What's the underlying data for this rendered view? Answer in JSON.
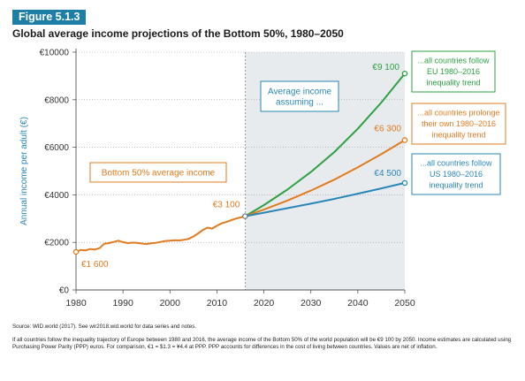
{
  "figure": {
    "label": "Figure 5.1.3",
    "title": "Global average income projections of the Bottom 50%, 1980–2050"
  },
  "chart_data": {
    "type": "line",
    "title": "Global average income projections of the Bottom 50%, 1980–2050",
    "ylabel": "Annual income per adult (€)",
    "xlabel": "",
    "xlim": [
      1980,
      2050
    ],
    "ylim": [
      0,
      10000
    ],
    "x_ticks": [
      "1980",
      "1990",
      "2000",
      "2010",
      "2020",
      "2030",
      "2040",
      "2050"
    ],
    "y_ticks": [
      "€0",
      "€2000",
      "€4000",
      "€6000",
      "€8000",
      "€10000"
    ],
    "grid": "dotted horizontal",
    "projection_start": 2016,
    "colors": {
      "historical": "#e07b20",
      "eu": "#2ea043",
      "own": "#e07b20",
      "us": "#2a86b8",
      "projection_shade": "#e8ebee"
    },
    "series": [
      {
        "key": "historical",
        "x": [
          1980,
          1981,
          1982,
          1983,
          1984,
          1985,
          1986,
          1987,
          1988,
          1989,
          1990,
          1991,
          1992,
          1993,
          1994,
          1995,
          1996,
          1997,
          1998,
          1999,
          2000,
          2001,
          2002,
          2003,
          2004,
          2005,
          2006,
          2007,
          2008,
          2009,
          2010,
          2011,
          2012,
          2013,
          2014,
          2015,
          2016
        ],
        "y": [
          1600,
          1680,
          1660,
          1720,
          1700,
          1760,
          1940,
          1970,
          2020,
          2070,
          2010,
          1970,
          1990,
          1980,
          1950,
          1930,
          1960,
          1980,
          2020,
          2060,
          2070,
          2090,
          2080,
          2110,
          2150,
          2250,
          2380,
          2520,
          2620,
          2580,
          2700,
          2800,
          2860,
          2930,
          3000,
          3050,
          3100
        ]
      },
      {
        "key": "eu",
        "x": [
          2016,
          2020,
          2025,
          2030,
          2035,
          2040,
          2045,
          2050
        ],
        "y": [
          3100,
          3570,
          4220,
          4960,
          5800,
          6780,
          7880,
          9100
        ]
      },
      {
        "key": "own",
        "x": [
          2016,
          2020,
          2025,
          2030,
          2035,
          2040,
          2045,
          2050
        ],
        "y": [
          3100,
          3380,
          3760,
          4180,
          4640,
          5160,
          5710,
          6300
        ]
      },
      {
        "key": "us",
        "x": [
          2016,
          2020,
          2025,
          2030,
          2035,
          2040,
          2045,
          2050
        ],
        "y": [
          3100,
          3250,
          3440,
          3630,
          3830,
          4050,
          4270,
          4500
        ]
      }
    ],
    "data_labels": {
      "start": "€1 600",
      "current": "€3 100",
      "eu_end": "€9 100",
      "own_end": "€6 300",
      "us_end": "€4 500"
    },
    "annotations": {
      "historical_box": "Bottom 50% average income",
      "assuming_box": [
        "Average income",
        "assuming ..."
      ],
      "eu_box": [
        "...all countries follow",
        "EU 1980–2016",
        "inequality trend"
      ],
      "own_box": [
        "...all countries prolonge",
        "their own 1980–2016",
        "inequality trend"
      ],
      "us_box": [
        "...all countries follow",
        "US 1980–2016",
        "inequality trend"
      ]
    }
  },
  "notes": {
    "source": "Source: WID.world (2017). See wir2018.wid.world for data series and notes.",
    "body": "If all countries follow the inequality trajectory of Europe between 1980 and 2016, the average income of the Bottom 50% of the world population will be €9 100 by 2050. Income estimates are calculated using Purchasing Power Parity (PPP) euros. For comparison, €1 = $1.3 = ¥4.4 at PPP. PPP accounts for differences in the cost of living between countries. Values are net of inflation."
  }
}
